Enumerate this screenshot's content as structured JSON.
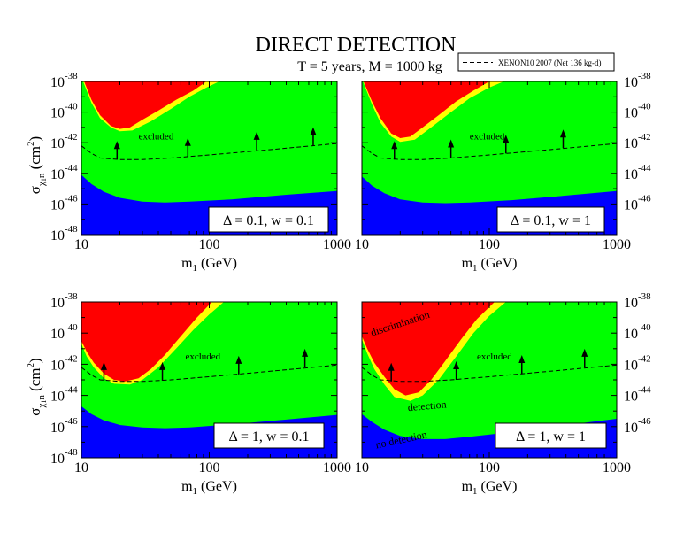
{
  "title": "DIRECT DETECTION",
  "subtitle": "T = 5 years,  M = 1000 kg",
  "legend": {
    "label": "XENON10 2007 (Net 136 kg-d)",
    "style": "dashed"
  },
  "colors": {
    "red": "#ff0000",
    "yellow": "#ffff00",
    "green": "#00ff00",
    "blue": "#0000ff",
    "line": "#000000"
  },
  "chart_data": [
    {
      "type": "area",
      "panel": "top-left",
      "box_label": "Δ = 0.1,  w = 0.1",
      "xlabel": "m1 (GeV)",
      "ylabel": "σχ1n (cm2)",
      "xscale": "log",
      "yscale": "log",
      "xlim": [
        10,
        1000
      ],
      "ylim_exp": [
        -48,
        -38
      ],
      "x_ticks": [
        "10",
        "100",
        "1000"
      ],
      "y_tick_exps": [
        "-48",
        "-46",
        "-44",
        "-42",
        "-40",
        "-38"
      ],
      "region_labels": [
        {
          "text": "excluded",
          "x": 28,
          "y": -41.8
        }
      ],
      "red_boundary": [
        [
          10.5,
          -38
        ],
        [
          12,
          -39.2
        ],
        [
          14,
          -40.2
        ],
        [
          17,
          -40.9
        ],
        [
          20,
          -41.1
        ],
        [
          24,
          -41.0
        ],
        [
          30,
          -40.5
        ],
        [
          40,
          -39.9
        ],
        [
          55,
          -39.2
        ],
        [
          75,
          -38.6
        ],
        [
          95,
          -38
        ]
      ],
      "yellow_boundary": [
        [
          10.3,
          -38
        ],
        [
          12,
          -39.4
        ],
        [
          14,
          -40.4
        ],
        [
          17,
          -41.0
        ],
        [
          20,
          -41.25
        ],
        [
          25,
          -41.2
        ],
        [
          35,
          -40.6
        ],
        [
          50,
          -39.8
        ],
        [
          70,
          -39.0
        ],
        [
          95,
          -38.4
        ],
        [
          120,
          -38
        ]
      ],
      "blue_boundary": [
        [
          10,
          -44.1
        ],
        [
          12,
          -44.7
        ],
        [
          15,
          -45.2
        ],
        [
          20,
          -45.6
        ],
        [
          30,
          -45.85
        ],
        [
          45,
          -45.9
        ],
        [
          70,
          -45.85
        ],
        [
          150,
          -45.7
        ],
        [
          400,
          -45.4
        ],
        [
          1000,
          -45.15
        ]
      ],
      "xenon_limit": [
        [
          10,
          -42.2
        ],
        [
          12,
          -42.7
        ],
        [
          14,
          -43.0
        ],
        [
          20,
          -43.1
        ],
        [
          30,
          -43.1
        ],
        [
          50,
          -43.0
        ],
        [
          100,
          -42.8
        ],
        [
          300,
          -42.45
        ],
        [
          1000,
          -42.05
        ]
      ],
      "arrows": [
        [
          19,
          -43.1
        ],
        [
          68,
          -42.9
        ],
        [
          235,
          -42.5
        ],
        [
          650,
          -42.2
        ]
      ]
    },
    {
      "type": "area",
      "panel": "top-right",
      "box_label": "Δ = 0.1,  w = 1",
      "xlabel": "m1 (GeV)",
      "ylabel": "",
      "xscale": "log",
      "yscale": "log",
      "xlim": [
        10,
        1000
      ],
      "ylim_exp": [
        -48,
        -38
      ],
      "x_ticks": [
        "10",
        "100",
        "1000"
      ],
      "y_tick_exps": [
        "-46",
        "-44",
        "-42",
        "-40",
        "-38"
      ],
      "region_labels": [
        {
          "text": "excluded",
          "x": 70,
          "y": -41.8
        }
      ],
      "red_boundary": [
        [
          10.3,
          -38
        ],
        [
          12,
          -39.3
        ],
        [
          14,
          -40.4
        ],
        [
          17,
          -41.4
        ],
        [
          20,
          -41.7
        ],
        [
          24,
          -41.6
        ],
        [
          30,
          -41.0
        ],
        [
          40,
          -40.2
        ],
        [
          55,
          -39.3
        ],
        [
          75,
          -38.6
        ],
        [
          100,
          -38
        ]
      ],
      "yellow_boundary": [
        [
          10.2,
          -38
        ],
        [
          12,
          -39.5
        ],
        [
          14,
          -40.7
        ],
        [
          17,
          -41.6
        ],
        [
          20,
          -41.95
        ],
        [
          26,
          -41.8
        ],
        [
          35,
          -41.0
        ],
        [
          50,
          -40.0
        ],
        [
          70,
          -39.1
        ],
        [
          100,
          -38.4
        ],
        [
          130,
          -38
        ]
      ],
      "blue_boundary": [
        [
          10,
          -44.2
        ],
        [
          12,
          -44.8
        ],
        [
          15,
          -45.3
        ],
        [
          20,
          -45.7
        ],
        [
          30,
          -45.9
        ],
        [
          45,
          -45.95
        ],
        [
          70,
          -45.9
        ],
        [
          150,
          -45.75
        ],
        [
          400,
          -45.45
        ],
        [
          1000,
          -45.15
        ]
      ],
      "xenon_limit": [
        [
          10,
          -42.2
        ],
        [
          12,
          -42.7
        ],
        [
          14,
          -43.0
        ],
        [
          20,
          -43.1
        ],
        [
          30,
          -43.1
        ],
        [
          50,
          -43.0
        ],
        [
          100,
          -42.8
        ],
        [
          300,
          -42.45
        ],
        [
          1000,
          -42.05
        ]
      ],
      "arrows": [
        [
          18,
          -43.1
        ],
        [
          50,
          -43.0
        ],
        [
          135,
          -42.7
        ],
        [
          380,
          -42.35
        ]
      ]
    },
    {
      "type": "area",
      "panel": "bottom-left",
      "box_label": "Δ = 1,  w = 0.1",
      "xlabel": "m1 (GeV)",
      "ylabel": "σχ1n (cm2)",
      "xscale": "log",
      "yscale": "log",
      "xlim": [
        10,
        1000
      ],
      "ylim_exp": [
        -48,
        -38
      ],
      "x_ticks": [
        "10",
        "100",
        "1000"
      ],
      "y_tick_exps": [
        "-48",
        "-46",
        "-44",
        "-42",
        "-40",
        "-38"
      ],
      "region_labels": [
        {
          "text": "excluded",
          "x": 65,
          "y": -41.7
        }
      ],
      "red_boundary": [
        [
          10,
          -40.5
        ],
        [
          11,
          -41.2
        ],
        [
          12.5,
          -41.9
        ],
        [
          15,
          -42.6
        ],
        [
          18,
          -43.0
        ],
        [
          22,
          -43.1
        ],
        [
          28,
          -42.9
        ],
        [
          35,
          -42.3
        ],
        [
          45,
          -41.4
        ],
        [
          60,
          -40.2
        ],
        [
          80,
          -39.0
        ],
        [
          105,
          -38
        ]
      ],
      "yellow_boundary": [
        [
          10,
          -40.7
        ],
        [
          11,
          -41.5
        ],
        [
          12.5,
          -42.2
        ],
        [
          15,
          -42.9
        ],
        [
          18,
          -43.25
        ],
        [
          24,
          -43.3
        ],
        [
          30,
          -43.0
        ],
        [
          40,
          -42.2
        ],
        [
          55,
          -41.0
        ],
        [
          75,
          -39.8
        ],
        [
          100,
          -38.8
        ],
        [
          130,
          -38
        ]
      ],
      "blue_boundary": [
        [
          10,
          -44.7
        ],
        [
          12,
          -45.2
        ],
        [
          15,
          -45.6
        ],
        [
          20,
          -45.9
        ],
        [
          30,
          -46.05
        ],
        [
          45,
          -46.1
        ],
        [
          70,
          -46.05
        ],
        [
          150,
          -45.85
        ],
        [
          400,
          -45.55
        ],
        [
          1000,
          -45.25
        ]
      ],
      "xenon_limit": [
        [
          10,
          -42.2
        ],
        [
          12,
          -42.7
        ],
        [
          14,
          -43.0
        ],
        [
          20,
          -43.1
        ],
        [
          30,
          -43.1
        ],
        [
          50,
          -43.0
        ],
        [
          100,
          -42.8
        ],
        [
          300,
          -42.45
        ],
        [
          1000,
          -42.05
        ]
      ],
      "arrows": [
        [
          15,
          -43.05
        ],
        [
          43,
          -43.05
        ],
        [
          170,
          -42.65
        ],
        [
          560,
          -42.2
        ]
      ]
    },
    {
      "type": "area",
      "panel": "bottom-right",
      "box_label": "Δ = 1,  w = 1",
      "xlabel": "m1 (GeV)",
      "ylabel": "",
      "xscale": "log",
      "yscale": "log",
      "xlim": [
        10,
        1000
      ],
      "ylim_exp": [
        -48,
        -38
      ],
      "x_ticks": [
        "10",
        "100",
        "1000"
      ],
      "y_tick_exps": [
        "-46",
        "-44",
        "-42",
        "-40",
        "-38"
      ],
      "region_labels": [
        {
          "text": "excluded",
          "x": 80,
          "y": -41.7
        },
        {
          "text": "discrimination",
          "x": 12,
          "y": -40.2,
          "angle": -18
        },
        {
          "text": "detection",
          "x": 23,
          "y": -45.0,
          "angle": -5
        },
        {
          "text": "no detection",
          "x": 13,
          "y": -47.4,
          "angle": -12
        }
      ],
      "red_boundary": [
        [
          10,
          -40.2
        ],
        [
          11,
          -41.0
        ],
        [
          12.5,
          -41.9
        ],
        [
          15,
          -42.8
        ],
        [
          18,
          -43.6
        ],
        [
          22,
          -44.0
        ],
        [
          28,
          -43.8
        ],
        [
          35,
          -43.0
        ],
        [
          45,
          -41.8
        ],
        [
          60,
          -40.4
        ],
        [
          80,
          -39.1
        ],
        [
          110,
          -38
        ]
      ],
      "yellow_boundary": [
        [
          10,
          -40.4
        ],
        [
          11,
          -41.3
        ],
        [
          12.5,
          -42.3
        ],
        [
          15,
          -43.3
        ],
        [
          18,
          -44.1
        ],
        [
          24,
          -44.35
        ],
        [
          30,
          -44.0
        ],
        [
          40,
          -43.0
        ],
        [
          55,
          -41.5
        ],
        [
          75,
          -40.0
        ],
        [
          100,
          -38.9
        ],
        [
          135,
          -38
        ]
      ],
      "blue_boundary": [
        [
          10,
          -45.2
        ],
        [
          12,
          -45.7
        ],
        [
          15,
          -46.2
        ],
        [
          20,
          -46.6
        ],
        [
          30,
          -46.8
        ],
        [
          45,
          -46.8
        ],
        [
          70,
          -46.65
        ],
        [
          150,
          -46.35
        ],
        [
          400,
          -45.9
        ],
        [
          1000,
          -45.5
        ]
      ],
      "xenon_limit": [
        [
          10,
          -42.2
        ],
        [
          12,
          -42.7
        ],
        [
          14,
          -43.0
        ],
        [
          20,
          -43.1
        ],
        [
          30,
          -43.1
        ],
        [
          50,
          -43.0
        ],
        [
          100,
          -42.8
        ],
        [
          300,
          -42.45
        ],
        [
          1000,
          -42.05
        ]
      ],
      "arrows": [
        [
          17,
          -43.1
        ],
        [
          55,
          -43.0
        ],
        [
          180,
          -42.6
        ],
        [
          560,
          -42.2
        ]
      ]
    }
  ]
}
